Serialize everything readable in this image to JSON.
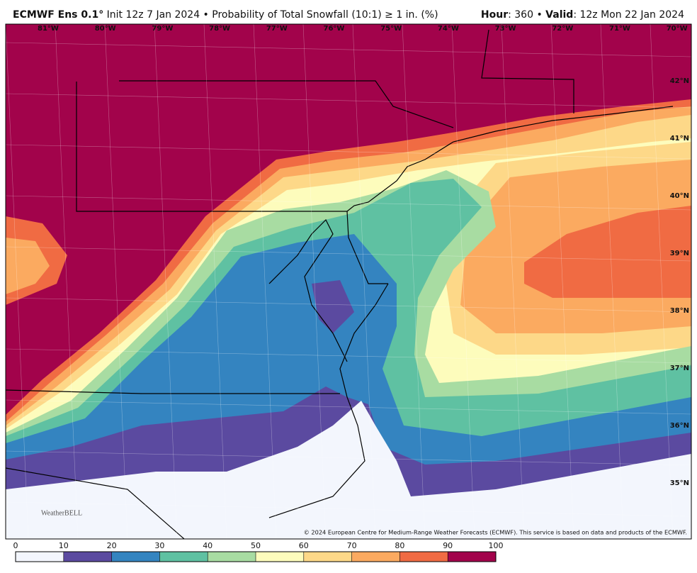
{
  "header": {
    "model": "ECMWF Ens 0.1°",
    "description": "Init 12z 7 Jan 2024 • Probability of Total Snowfall (10:1) ≥ 1 in. (%)",
    "hour_label": "Hour",
    "hour": ": 360",
    "separator": "•",
    "valid_label": "Valid",
    "valid": ": 12z Mon 22 Jan 2024"
  },
  "longitudes": [
    "81°W",
    "80°W",
    "79°W",
    "78°W",
    "77°W",
    "76°W",
    "75°W",
    "74°W",
    "73°W",
    "72°W",
    "71°W",
    "70°W"
  ],
  "latitudes": [
    "42°N",
    "41°N",
    "40°N",
    "39°N",
    "38°N",
    "37°N",
    "36°N",
    "35°N"
  ],
  "colorbar": {
    "ticks": [
      0,
      10,
      20,
      30,
      40,
      50,
      60,
      70,
      80,
      90,
      100
    ],
    "colors": [
      "#f3f6fd",
      "#5b4aa0",
      "#3484c0",
      "#5fc1a2",
      "#a8dca2",
      "#fdfcbc",
      "#fdd888",
      "#fbaa60",
      "#f06b43",
      "#a2034b"
    ]
  },
  "copyright": "© 2024 European Centre for Medium-Range Weather Forecasts (ECMWF). This service is based on data and products of the ECMWF.",
  "logo": "WeatherBELL"
}
